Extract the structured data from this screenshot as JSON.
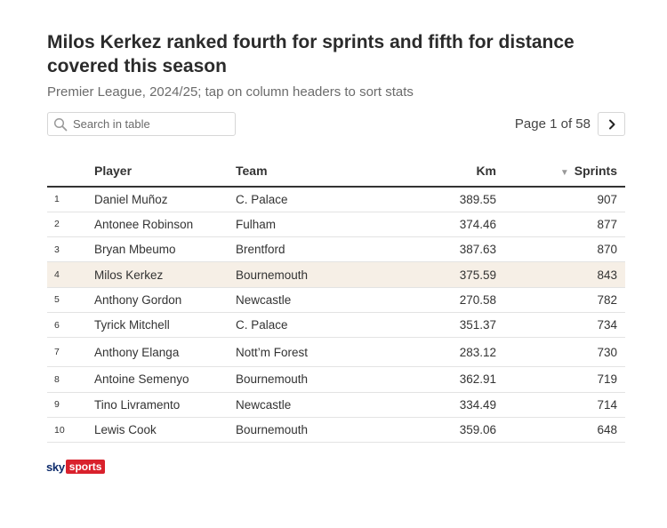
{
  "title": "Milos Kerkez ranked fourth for sprints and fifth for distance covered this season",
  "subtitle": "Premier League, 2024/25; tap on column headers to sort stats",
  "search": {
    "placeholder": "Search in table"
  },
  "pager": {
    "text": "Page 1 of 58",
    "next_icon": "chevron-right-icon"
  },
  "table": {
    "headers": {
      "rank": "",
      "player": "Player",
      "team": "Team",
      "km": "Km",
      "sprints": "Sprints"
    },
    "sorted_column": "sprints",
    "sort_direction": "descending",
    "highlight_color": "#f6efe6",
    "rows": [
      {
        "rank": "1",
        "player": "Daniel Muñoz",
        "team": "C. Palace",
        "km": "389.55",
        "sprints": "907"
      },
      {
        "rank": "2",
        "player": "Antonee Robinson",
        "team": "Fulham",
        "km": "374.46",
        "sprints": "877"
      },
      {
        "rank": "3",
        "player": "Bryan Mbeumo",
        "team": "Brentford",
        "km": "387.63",
        "sprints": "870"
      },
      {
        "rank": "4",
        "player": "Milos Kerkez",
        "team": "Bournemouth",
        "km": "375.59",
        "sprints": "843"
      },
      {
        "rank": "5",
        "player": "Anthony Gordon",
        "team": "Newcastle",
        "km": "270.58",
        "sprints": "782"
      },
      {
        "rank": "6",
        "player": "Tyrick Mitchell",
        "team": "C. Palace",
        "km": "351.37",
        "sprints": "734"
      },
      {
        "rank": "7",
        "player": "Anthony Elanga",
        "team": "Nott’m Forest",
        "km": "283.12",
        "sprints": "730"
      },
      {
        "rank": "8",
        "player": "Antoine Semenyo",
        "team": "Bournemouth",
        "km": "362.91",
        "sprints": "719"
      },
      {
        "rank": "9",
        "player": "Tino Livramento",
        "team": "Newcastle",
        "km": "334.49",
        "sprints": "714"
      },
      {
        "rank": "10",
        "player": "Lewis Cook",
        "team": "Bournemouth",
        "km": "359.06",
        "sprints": "648"
      }
    ]
  },
  "logo": {
    "sky": "sky",
    "sports": "sports",
    "brand_color": "#d9212c",
    "sky_color": "#0c2a6b"
  }
}
